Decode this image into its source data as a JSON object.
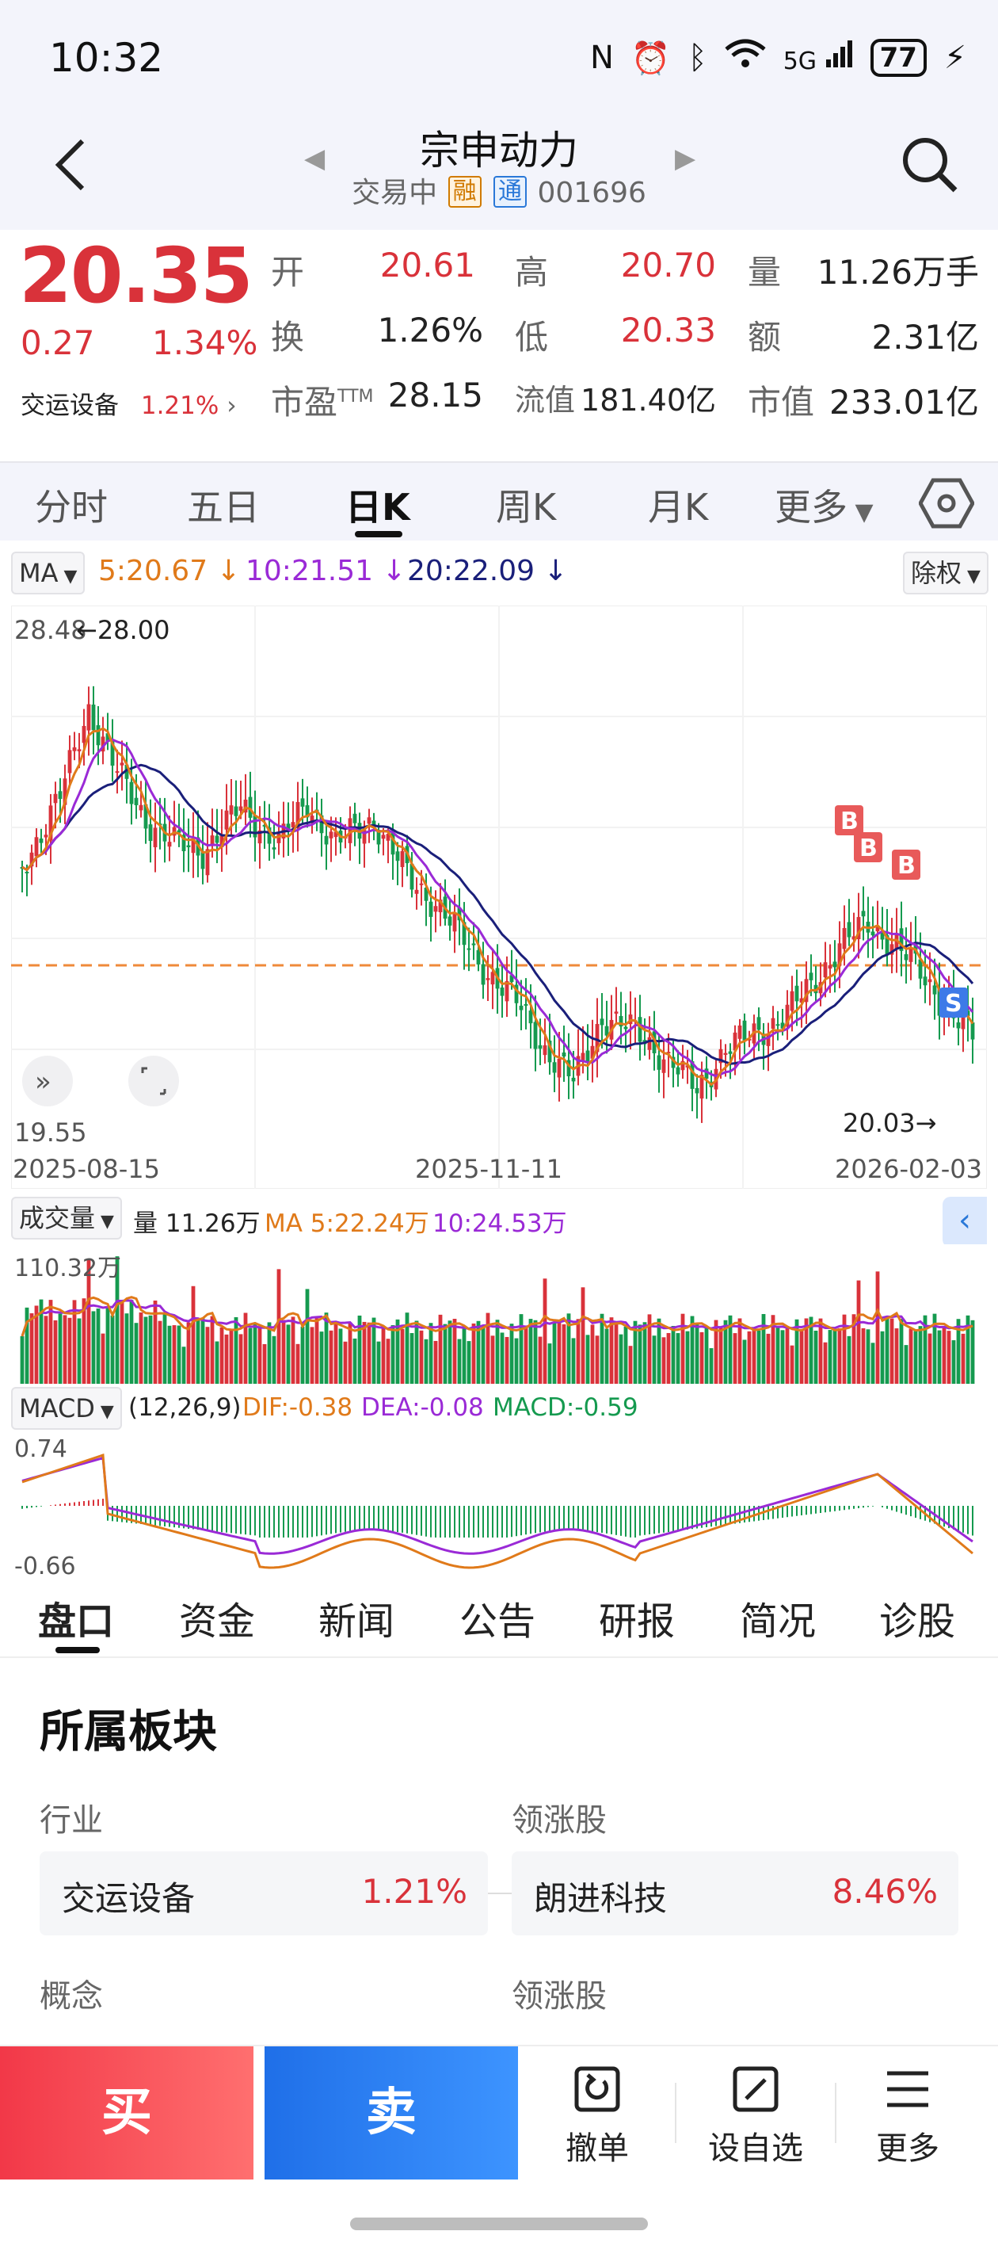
{
  "status_bar": {
    "time": "10:32",
    "network": "5G",
    "battery": "77"
  },
  "header": {
    "stock_name": "宗申动力",
    "status": "交易中",
    "tag_rong": "融",
    "tag_tong": "通",
    "code": "001696"
  },
  "quote": {
    "price": "20.35",
    "change": "0.27",
    "change_pct": "1.34%",
    "sector_name": "交运设备",
    "sector_pct": "1.21%",
    "fields": {
      "open_label": "开",
      "open": "20.61",
      "high_label": "高",
      "high": "20.70",
      "volume_label": "量",
      "volume": "11.26万手",
      "turnover_label": "换",
      "turnover": "1.26%",
      "low_label": "低",
      "low": "20.33",
      "amount_label": "额",
      "amount": "2.31亿",
      "pe_label": "市盈",
      "pe_sup": "TTM",
      "pe": "28.15",
      "float_cap_label": "流值",
      "float_cap": "181.40亿",
      "market_cap_label": "市值",
      "market_cap": "233.01亿"
    }
  },
  "period_tabs": [
    "分时",
    "五日",
    "日K",
    "周K",
    "月K",
    "更多"
  ],
  "ma_bar": {
    "chip": "MA",
    "ma5": "5:20.67",
    "ma10": "10:21.51",
    "ma20": "20:22.09",
    "adjust": "除权"
  },
  "kchart": {
    "max_label": "28.48",
    "max_marker": "28.00",
    "min_label": "19.55",
    "last_marker": "20.03",
    "dates": [
      "2025-08-15",
      "2025-11-11",
      "2026-02-03"
    ]
  },
  "volume": {
    "chip": "成交量",
    "vol": "量 11.26万",
    "ma5": "MA 5:22.24万",
    "ma10": "10:24.53万",
    "max_label": "110.32万"
  },
  "macd": {
    "chip": "MACD",
    "params": "(12,26,9)",
    "dif": "DIF:-0.38",
    "dea": "DEA:-0.08",
    "macd": "MACD:-0.59",
    "top_label": "0.74",
    "bottom_label": "-0.66"
  },
  "info_tabs": [
    "盘口",
    "资金",
    "新闻",
    "公告",
    "研报",
    "简况",
    "诊股"
  ],
  "sector_section": {
    "title": "所属板块",
    "industry_label": "行业",
    "leader_label": "领涨股",
    "industry_name": "交运设备",
    "industry_pct": "1.21%",
    "leader_name": "朗进科技",
    "leader_pct": "8.46%",
    "concept_label": "概念",
    "concept_leader_label": "领涨股"
  },
  "bottom_bar": {
    "buy": "买",
    "sell": "卖",
    "cancel": "撤单",
    "watchlist": "设自选",
    "more": "更多"
  },
  "colors": {
    "up": "#d9323a",
    "down": "#159a4f",
    "ma5": "#e07a1a",
    "ma10": "#9a2ad6",
    "ma20": "#1a1f7a"
  }
}
